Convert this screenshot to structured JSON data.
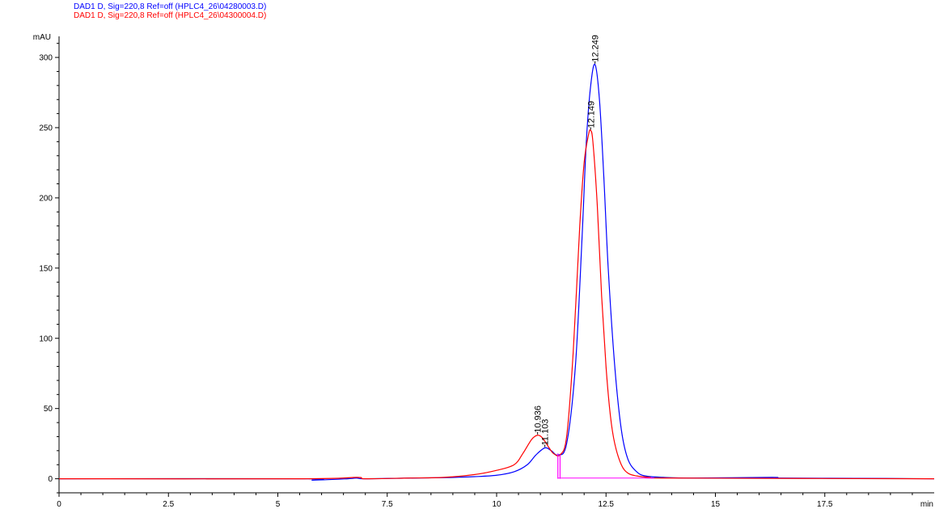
{
  "legend": {
    "series1": "DAD1 D, Sig=220,8 Ref=off (HPLC4_26\\04280003.D)",
    "series2": "DAD1 D, Sig=220,8 Ref=off (HPLC4_26\\04300004.D)"
  },
  "colors": {
    "series1": "#0000ff",
    "series2": "#ff0000",
    "baseline": "#ff00ff",
    "axis": "#000000"
  },
  "chart_data": {
    "type": "line",
    "ylabel": "mAU",
    "xlabel": "min",
    "xlim": [
      0,
      20
    ],
    "ylim": [
      -10,
      315
    ],
    "x_ticks": [
      0,
      2.5,
      5,
      7.5,
      10,
      12.5,
      15,
      17.5
    ],
    "x_tick_labels": [
      "0",
      "2.5",
      "5",
      "7.5",
      "10",
      "12.5",
      "15",
      "17.5"
    ],
    "y_ticks": [
      0,
      50,
      100,
      150,
      200,
      250,
      300
    ],
    "y_tick_labels": [
      "0",
      "50",
      "100",
      "150",
      "200",
      "250",
      "300"
    ],
    "grid": false,
    "legend_position": "top-left",
    "series": [
      {
        "name": "DAD1 D, Sig=220,8 Ref=off (HPLC4_26\\04280003.D)",
        "color": "#0000ff",
        "x": [
          0,
          5.6,
          5.8,
          6.6,
          6.8,
          7.0,
          8.0,
          8.8,
          9.5,
          10.0,
          10.4,
          10.7,
          10.9,
          11.103,
          11.25,
          11.4,
          11.6,
          11.8,
          11.95,
          12.05,
          12.15,
          12.249,
          12.35,
          12.45,
          12.55,
          12.7,
          12.85,
          13.0,
          13.2,
          13.4,
          13.8,
          14.5,
          16.3,
          16.5,
          18.2,
          20
        ],
        "y": [
          0,
          0,
          -1,
          0,
          0.5,
          0,
          0.5,
          0.8,
          1.5,
          2.5,
          5,
          10,
          17,
          22,
          20,
          17,
          25,
          80,
          170,
          240,
          280,
          295,
          270,
          215,
          150,
          80,
          35,
          14,
          5,
          2,
          1,
          0.5,
          1,
          0.5,
          0.3,
          0
        ]
      },
      {
        "name": "DAD1 D, Sig=220,8 Ref=off (HPLC4_26\\04300004.D)",
        "color": "#ff0000",
        "x": [
          0,
          5.6,
          6.8,
          7.0,
          8.0,
          8.8,
          9.5,
          10.0,
          10.4,
          10.6,
          10.8,
          10.936,
          11.05,
          11.2,
          11.3,
          11.45,
          11.6,
          11.75,
          11.9,
          12.0,
          12.1,
          12.149,
          12.2,
          12.3,
          12.4,
          12.5,
          12.6,
          12.7,
          12.85,
          13.0,
          13.2,
          13.5,
          14.0,
          20
        ],
        "y": [
          0,
          0,
          1,
          0,
          0.5,
          1,
          3,
          6,
          10,
          18,
          28,
          31,
          29,
          22,
          18,
          17,
          30,
          90,
          180,
          225,
          245,
          248,
          240,
          195,
          130,
          80,
          45,
          25,
          10,
          4,
          2,
          1,
          0.5,
          0
        ]
      }
    ],
    "peak_labels": [
      {
        "x": 10.936,
        "y": 31,
        "text": "10.936",
        "series": "DAD1 D, Sig=220,8 Ref=off (HPLC4_26\\04300004.D)"
      },
      {
        "x": 11.103,
        "y": 22,
        "text": "11.103",
        "series": "DAD1 D, Sig=220,8 Ref=off (HPLC4_26\\04280003.D)"
      },
      {
        "x": 12.149,
        "y": 248,
        "text": "12.149",
        "series": "DAD1 D, Sig=220,8 Ref=off (HPLC4_26\\04300004.D)"
      },
      {
        "x": 12.249,
        "y": 295,
        "text": "12.249",
        "series": "DAD1 D, Sig=220,8 Ref=off (HPLC4_26\\04280003.D)"
      }
    ],
    "integration_markers": [
      {
        "x": 11.4,
        "y_from": 0,
        "y_to": 18
      },
      {
        "x": 11.45,
        "y_from": 0,
        "y_to": 17
      }
    ],
    "baseline": {
      "x_from": 11.4,
      "x_to": 13.6,
      "y": 0.5
    }
  }
}
